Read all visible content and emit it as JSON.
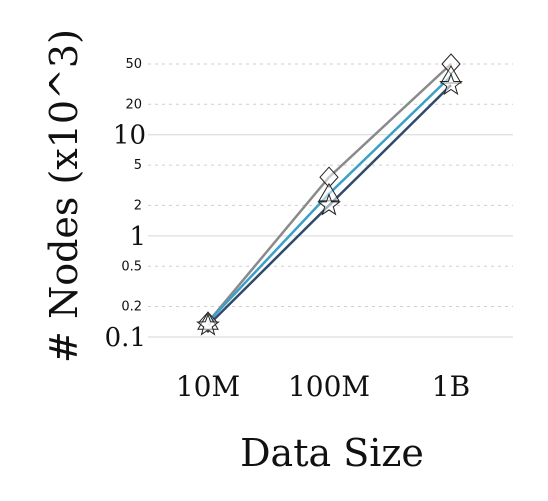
{
  "chart_data": {
    "type": "line",
    "title": "",
    "xlabel": "Data Size",
    "ylabel": "# Nodes (x10^3)",
    "categories": [
      "10M",
      "100M",
      "1B"
    ],
    "y_scale": "log",
    "ylim": [
      0.1,
      50
    ],
    "y_major_ticks": [
      {
        "value": 0.1,
        "label": "0.1"
      },
      {
        "value": 1,
        "label": "1"
      },
      {
        "value": 10,
        "label": "10"
      }
    ],
    "y_minor_ticks": [
      {
        "value": 0.2,
        "label": "0.2"
      },
      {
        "value": 0.5,
        "label": "0.5"
      },
      {
        "value": 2,
        "label": "2"
      },
      {
        "value": 5,
        "label": "5"
      },
      {
        "value": 20,
        "label": "20"
      },
      {
        "value": 50,
        "label": "50"
      }
    ],
    "grid": true,
    "legend": "none",
    "series": [
      {
        "values": [
          0.14,
          3.8,
          50
        ],
        "color": "#8a8a8a",
        "marker": "diamond"
      },
      {
        "values": [
          0.14,
          2.6,
          38
        ],
        "color": "#3aa0c8",
        "marker": "triangle"
      },
      {
        "values": [
          0.13,
          2.0,
          31
        ],
        "color": "#2f4a6a",
        "marker": "star"
      }
    ]
  }
}
